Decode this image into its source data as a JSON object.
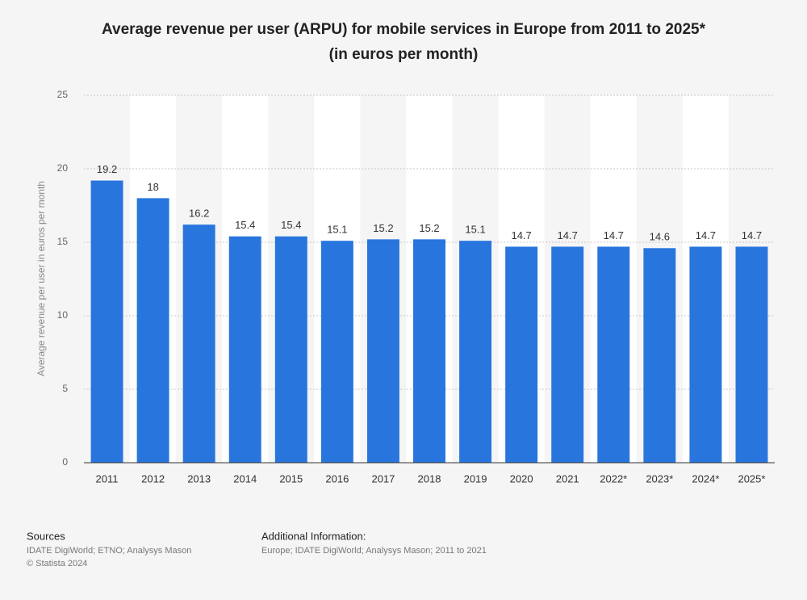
{
  "chart_data": {
    "type": "bar",
    "title": "Average revenue per user (ARPU) for mobile services in Europe from 2011 to 2025*",
    "subtitle": "(in euros per month)",
    "y_label": "Average revenue per user in euros per month",
    "categories": [
      "2011",
      "2012",
      "2013",
      "2014",
      "2015",
      "2016",
      "2017",
      "2018",
      "2019",
      "2020",
      "2021",
      "2022*",
      "2023*",
      "2024*",
      "2025*"
    ],
    "values": [
      19.2,
      18,
      16.2,
      15.4,
      15.4,
      15.1,
      15.2,
      15.2,
      15.1,
      14.7,
      14.7,
      14.7,
      14.6,
      14.7,
      14.7
    ],
    "color": "#2876dd",
    "ylim": [
      0,
      25
    ],
    "yticks": [
      0,
      5,
      10,
      15,
      20,
      25
    ],
    "grid": true
  },
  "footer": {
    "sources_heading": "Sources",
    "sources": "IDATE DigiWorld; ETNO; Analysys Mason",
    "copyright": "© Statista 2024",
    "info_heading": "Additional Information:",
    "info": "Europe; IDATE DigiWorld; Analysys Mason; 2011 to 2021"
  }
}
